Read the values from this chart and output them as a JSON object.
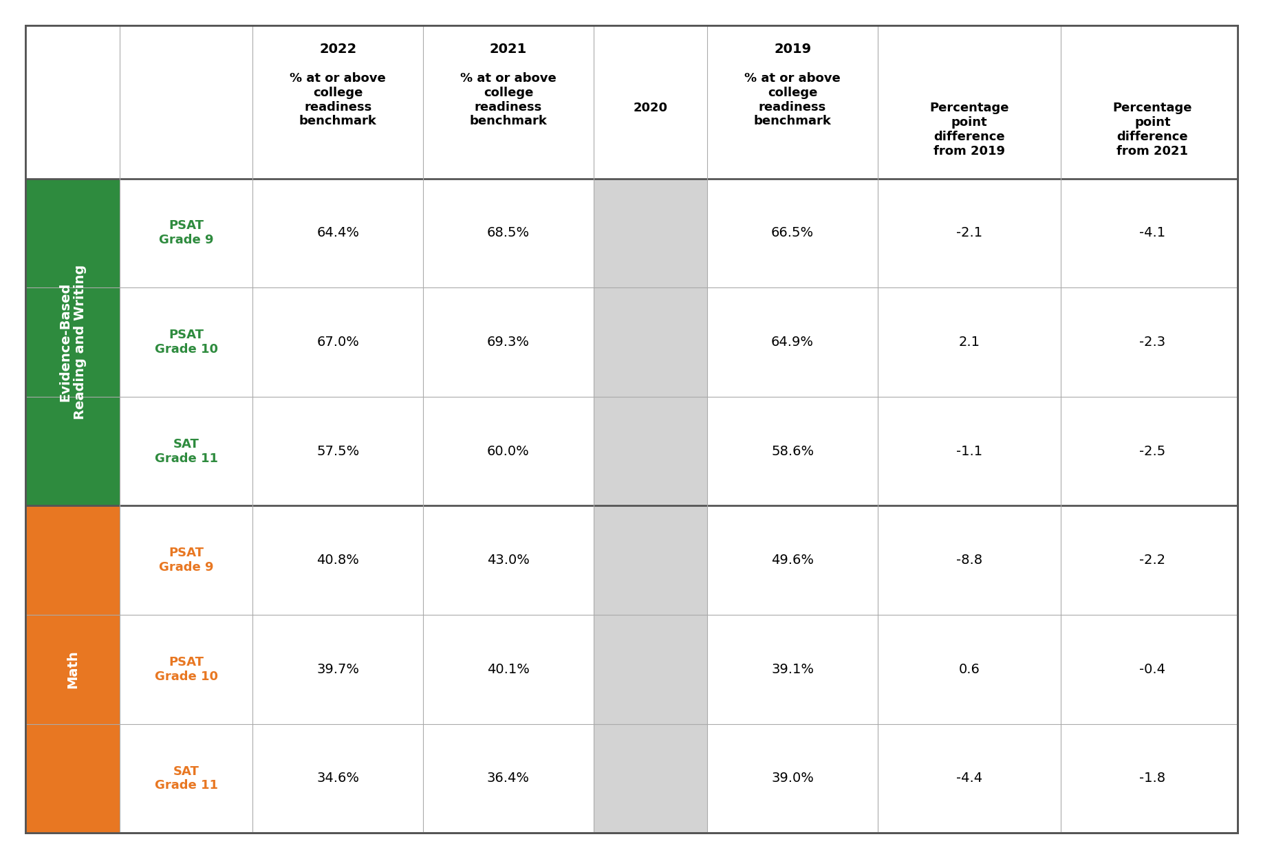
{
  "title": "",
  "header_year_labels": [
    "2022",
    "2021",
    "",
    "2019",
    "",
    ""
  ],
  "header_sub_labels": [
    "% at or above\ncollege\nreadiness\nbenchmark",
    "% at or above\ncollege\nreadiness\nbenchmark",
    "2020",
    "% at or above\ncollege\nreadiness\nbenchmark",
    "Percentage\npoint\ndifference\nfrom 2019",
    "Percentage\npoint\ndifference\nfrom 2021"
  ],
  "section1_label": "Evidence-Based\nReading and Writing",
  "section1_color": "#2e8b3e",
  "section1_text_color": "#ffffff",
  "section1_rows": [
    {
      "label": "PSAT\nGrade 9",
      "vals": [
        "64.4%",
        "68.5%",
        "",
        "66.5%",
        "-2.1",
        "-4.1"
      ]
    },
    {
      "label": "PSAT\nGrade 10",
      "vals": [
        "67.0%",
        "69.3%",
        "",
        "64.9%",
        "2.1",
        "-2.3"
      ]
    },
    {
      "label": "SAT\nGrade 11",
      "vals": [
        "57.5%",
        "60.0%",
        "",
        "58.6%",
        "-1.1",
        "-2.5"
      ]
    }
  ],
  "section2_label": "Math",
  "section2_color": "#e87722",
  "section2_text_color": "#ffffff",
  "section2_rows": [
    {
      "label": "PSAT\nGrade 9",
      "vals": [
        "40.8%",
        "43.0%",
        "",
        "49.6%",
        "-8.8",
        "-2.2"
      ]
    },
    {
      "label": "PSAT\nGrade 10",
      "vals": [
        "39.7%",
        "40.1%",
        "",
        "39.1%",
        "0.6",
        "-0.4"
      ]
    },
    {
      "label": "SAT\nGrade 11",
      "vals": [
        "34.6%",
        "36.4%",
        "",
        "39.0%",
        "-4.4",
        "-1.8"
      ]
    }
  ],
  "row_label_color1": "#2e8b3e",
  "row_label_color2": "#e87722",
  "col2020_bg": "#d3d3d3",
  "border_color": "#555555",
  "light_border_color": "#aaaaaa",
  "bg_color": "#ffffff",
  "header_fontsize": 13,
  "cell_fontsize": 14,
  "row_label_fontsize": 13,
  "section_label_fontsize": 14
}
